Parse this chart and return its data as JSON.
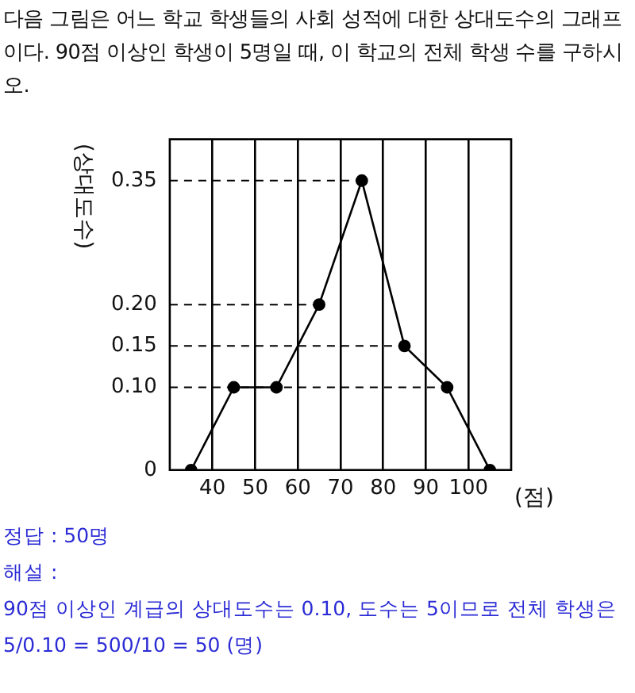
{
  "chart_data": {
    "type": "line",
    "title": "다음 그림은 어느 학교 학생들의 사회 성적에 대한 상대도수의 그래프이다. 90점 이상인 학생이 5명일 때, 이 학교의 전체 학생 수를 구하시오.",
    "xlabel": "(점)",
    "ylabel": "(상대도수)",
    "series": [
      {
        "color": "#000000",
        "x": [
          35,
          45,
          55,
          65,
          75,
          85,
          95,
          105
        ],
        "values": [
          0,
          0.1,
          0.1,
          0.2,
          0.35,
          0.15,
          0.1,
          0
        ]
      }
    ],
    "xlim": [
      30,
      110
    ],
    "xticks": [
      40,
      50,
      60,
      70,
      80,
      90,
      100
    ],
    "ylim": [
      0,
      0.4
    ],
    "yticks": [
      0,
      {
        "value": 0.1,
        "label": "0.10"
      },
      {
        "value": 0.15,
        "label": "0.15"
      },
      {
        "value": 0.2,
        "label": "0.20"
      },
      {
        "value": 0.35,
        "label": "0.35"
      }
    ],
    "ref_lines": [
      {
        "axis": "y",
        "value": 0.1,
        "line_style": "dashed"
      },
      {
        "axis": "y",
        "value": 0.15,
        "line_style": "dashed"
      },
      {
        "axis": "y",
        "value": 0.2,
        "line_style": "dashed"
      },
      {
        "axis": "y",
        "value": 0.35,
        "line_style": "dashed"
      }
    ],
    "grid": "x",
    "marker": "circle",
    "line_style": "solid",
    "legend": false,
    "annotations": [
      "정답 : 50명",
      "해설 :",
      "90점 이상인 계급의 상대도수는 0.10, 도수는 5이므로 전체 학생은",
      "5/0.10 = 500/10 = 50 (명)"
    ]
  }
}
